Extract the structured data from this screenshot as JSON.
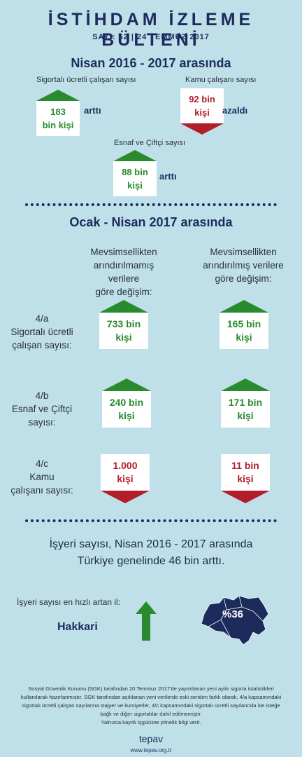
{
  "header": {
    "title": "İSTİHDAM İZLEME BÜLTENİ",
    "issue": "SAYI: 62 | 24 TEMMUZ 2017"
  },
  "section1": {
    "title": "Nisan 2016 - 2017 arasında",
    "items": [
      {
        "label": "Sigortalı ücretli çalışan sayısı",
        "value_line1": "183",
        "value_line2": "bin kişi",
        "direction": "up",
        "word": "arttı"
      },
      {
        "label": "Kamu çalışanı sayısı",
        "value_line1": "92 bin",
        "value_line2": "kişi",
        "direction": "down",
        "word": "azaldı"
      },
      {
        "label": "Esnaf ve Çiftçi sayısı",
        "value_line1": "88 bin",
        "value_line2": "kişi",
        "direction": "up",
        "word": "arttı"
      }
    ]
  },
  "section2": {
    "title": "Ocak - Nisan 2017 arasında",
    "col_headers": [
      [
        "Mevsimsellikten",
        "arındırılmamış verilere",
        "göre değişim:"
      ],
      [
        "Mevsimsellikten",
        "arındırılmış verilere",
        "göre değişim:"
      ]
    ],
    "rows": [
      {
        "label": [
          "4/a",
          "Sigortalı ücretli",
          "çalışan sayısı:"
        ],
        "values": [
          {
            "line1": "733 bin",
            "line2": "kişi",
            "direction": "up"
          },
          {
            "line1": "165 bin",
            "line2": "kişi",
            "direction": "up"
          }
        ]
      },
      {
        "label": [
          "4/b",
          "Esnaf ve Çiftçi",
          "sayısı:"
        ],
        "values": [
          {
            "line1": "240 bin",
            "line2": "kişi",
            "direction": "up"
          },
          {
            "line1": "171 bin",
            "line2": "kişi",
            "direction": "up"
          }
        ]
      },
      {
        "label": [
          "4/c",
          "Kamu",
          "çalışanı sayısı:"
        ],
        "values": [
          {
            "line1": "1.000",
            "line2": "kişi",
            "direction": "down"
          },
          {
            "line1": "11 bin",
            "line2": "kişi",
            "direction": "down"
          }
        ]
      }
    ]
  },
  "workplaces": {
    "line1": "İşyeri sayısı, Nisan 2016 - 2017 arasında",
    "line2": "Türkiye genelinde 46 bin arttı.",
    "fastest_label": "İşyeri sayısı en hızlı artan  il:",
    "province": "Hakkari",
    "percent": "%36",
    "arrow_icon": "arrow-up-icon"
  },
  "footnote": [
    "Sosyal Güvenlik Kurumu (SGK) tarafından 20 Temmuz 2017'de yayımlanan yeni aylık sigorta istatistikleri",
    "kullanılarak hazırlanmıştır. SGK tarafından açıklanan yeni verilerde eski seriden farklı olarak, 4/a kapsamındaki",
    "sigortalı ücretli çalışan sayılarına stajyer ve kursiyerler, 4/c  kapsamındaki sigortalı ücretli sayılarında ise isteğe",
    "bağlı ve diğer sigortalılar dahil edilmemiştir.",
    "Yalnızca kayıtlı işgücüne yönelik bilgi verir."
  ],
  "brand": {
    "name": "tepav",
    "url": "www.tepav.org.tr"
  },
  "colors": {
    "background": "#bfe0e9",
    "navy": "#1d2b5c",
    "green": "#2a8a2e",
    "red": "#b01e2a"
  }
}
